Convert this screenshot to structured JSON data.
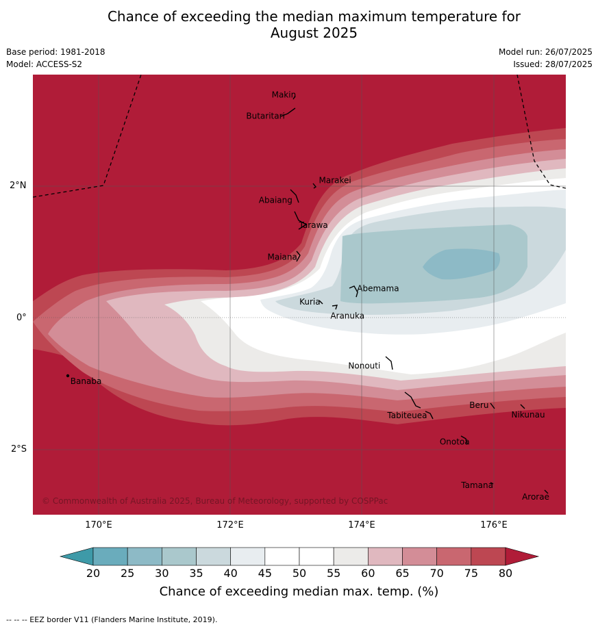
{
  "header": {
    "title_line1": "Chance of exceeding the median maximum temperature for",
    "title_line2": "August 2025",
    "base_period": "Base period: 1981-2018",
    "model": "Model: ACCESS-S2",
    "model_run": "Model run: 26/07/2025",
    "issued": "Issued: 28/07/2025"
  },
  "map": {
    "lat_labels": [
      "2°N",
      "0°",
      "2°S"
    ],
    "lon_labels": [
      "170°E",
      "172°E",
      "174°E",
      "176°E"
    ],
    "places": [
      {
        "name": "Makin",
        "lon": 173.0,
        "lat": 3.38
      },
      {
        "name": "Butaritari",
        "lon": 172.8,
        "lat": 3.12
      },
      {
        "name": "Marakei",
        "lon": 173.28,
        "lat": 2.0
      },
      {
        "name": "Abaiang",
        "lon": 172.95,
        "lat": 1.8
      },
      {
        "name": "Tarawa",
        "lon": 173.0,
        "lat": 1.4
      },
      {
        "name": "Maiana",
        "lon": 173.02,
        "lat": 0.92
      },
      {
        "name": "Abemama",
        "lon": 173.88,
        "lat": 0.4
      },
      {
        "name": "Kuria",
        "lon": 173.4,
        "lat": 0.22
      },
      {
        "name": "Aranuka",
        "lon": 173.6,
        "lat": 0.17
      },
      {
        "name": "Nonouti",
        "lon": 174.37,
        "lat": -0.65
      },
      {
        "name": "Tabiteuea",
        "lon": 174.9,
        "lat": -1.4
      },
      {
        "name": "Beru",
        "lon": 175.98,
        "lat": -1.33
      },
      {
        "name": "Nikunau",
        "lon": 176.45,
        "lat": -1.37
      },
      {
        "name": "Onotoa",
        "lon": 175.57,
        "lat": -1.8
      },
      {
        "name": "Tamana",
        "lon": 175.98,
        "lat": -2.5
      },
      {
        "name": "Arorae",
        "lon": 176.82,
        "lat": -2.64
      },
      {
        "name": "Banaba",
        "lon": 169.53,
        "lat": -0.86
      }
    ],
    "copyright": "© Commonwealth of Australia 2025, Bureau of Meteorology, supported by COSPPac"
  },
  "colorbar": {
    "label": "Chance of exceeding median max. temp. (%)",
    "ticks": [
      "20",
      "25",
      "30",
      "35",
      "40",
      "45",
      "50",
      "55",
      "60",
      "65",
      "70",
      "75",
      "80"
    ],
    "colors": [
      "#3e9aa8",
      "#6aacbc",
      "#8dbac6",
      "#aac8cc",
      "#cbd9dd",
      "#e8edf0",
      "#ffffff",
      "#ffffff",
      "#ecebe9",
      "#e0b8bf",
      "#d38d97",
      "#c96770",
      "#bd4752",
      "#b01c38"
    ]
  },
  "footer": {
    "text": "--  --  -- EEZ border V11 (Flanders Marine Institute, 2019)."
  }
}
